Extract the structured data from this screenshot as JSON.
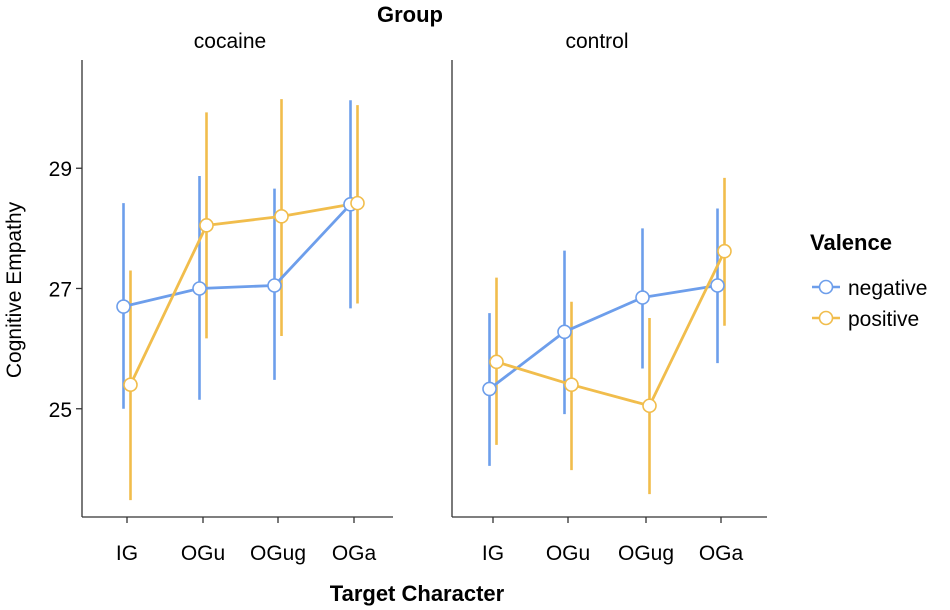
{
  "chart_data": {
    "type": "line",
    "title": "Group",
    "xlabel": "Target Character",
    "ylabel": "Cognitive Empathy",
    "ylim": [
      23.2,
      30.8
    ],
    "yticks": [
      25,
      27,
      29
    ],
    "ytick_labels": [
      "25",
      "27",
      "29"
    ],
    "categories": [
      "IG",
      "OGu",
      "OGug",
      "OGa"
    ],
    "legend": {
      "title": "Valence",
      "position": "right",
      "entries": [
        "negative",
        "positive"
      ]
    },
    "colors": {
      "negative": "#6d9eeb",
      "positive": "#f1bd4c"
    },
    "panels": [
      {
        "name": "cocaine",
        "series": [
          {
            "name": "negative",
            "values": [
              26.7,
              27.0,
              27.05,
              28.4
            ],
            "lower": [
              25.0,
              25.15,
              25.48,
              26.67
            ],
            "upper": [
              28.42,
              28.87,
              28.66,
              30.13
            ]
          },
          {
            "name": "positive",
            "values": [
              25.4,
              28.05,
              28.2,
              28.42
            ],
            "lower": [
              23.48,
              26.17,
              26.21,
              26.75
            ],
            "upper": [
              27.3,
              29.93,
              30.15,
              30.05
            ]
          }
        ]
      },
      {
        "name": "control",
        "series": [
          {
            "name": "negative",
            "values": [
              25.33,
              26.28,
              26.85,
              27.05
            ],
            "lower": [
              24.05,
              24.91,
              25.67,
              25.76
            ],
            "upper": [
              26.59,
              27.63,
              28.0,
              28.33
            ]
          },
          {
            "name": "positive",
            "values": [
              25.78,
              25.4,
              25.05,
              27.62
            ],
            "lower": [
              24.4,
              23.98,
              23.58,
              26.38
            ],
            "upper": [
              27.18,
              26.78,
              26.51,
              28.84
            ]
          }
        ]
      }
    ]
  }
}
